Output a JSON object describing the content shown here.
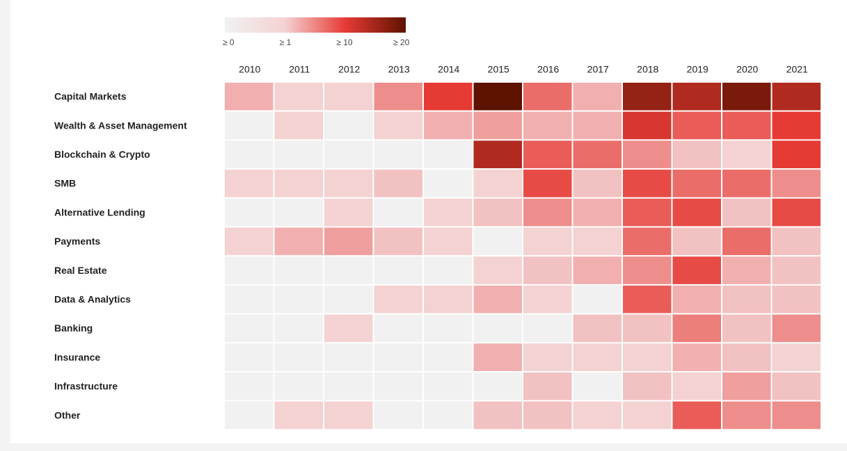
{
  "chart_data": {
    "type": "heatmap",
    "x": [
      "2010",
      "2011",
      "2012",
      "2013",
      "2014",
      "2015",
      "2016",
      "2017",
      "2018",
      "2019",
      "2020",
      "2021"
    ],
    "y": [
      "Capital Markets",
      "Wealth & Asset Management",
      "Blockchain & Crypto",
      "SMB",
      "Alternative Lending",
      "Payments",
      "Real Estate",
      "Data & Analytics",
      "Banking",
      "Insurance",
      "Infrastructure",
      "Other"
    ],
    "values": [
      [
        3,
        1,
        1,
        5,
        10,
        20,
        7,
        3,
        16,
        14,
        18,
        14
      ],
      [
        0,
        1,
        0,
        1,
        3,
        4,
        3,
        3,
        11,
        8,
        8,
        10
      ],
      [
        0,
        0,
        0,
        0,
        0,
        14,
        8,
        7,
        5,
        2,
        1,
        10
      ],
      [
        1,
        1,
        1,
        2,
        0,
        1,
        9,
        2,
        9,
        7,
        7,
        5
      ],
      [
        0,
        0,
        1,
        0,
        1,
        2,
        5,
        3,
        8,
        9,
        2,
        9
      ],
      [
        1,
        3,
        4,
        2,
        1,
        0,
        1,
        1,
        7,
        2,
        7,
        2
      ],
      [
        0,
        0,
        0,
        0,
        0,
        1,
        2,
        3,
        5,
        9,
        3,
        2
      ],
      [
        0,
        0,
        0,
        1,
        1,
        3,
        1,
        0,
        8,
        3,
        2,
        2
      ],
      [
        0,
        0,
        1,
        0,
        0,
        0,
        0,
        2,
        2,
        6,
        2,
        5
      ],
      [
        0,
        0,
        0,
        0,
        0,
        3,
        1,
        1,
        1,
        3,
        2,
        1
      ],
      [
        0,
        0,
        0,
        0,
        0,
        0,
        2,
        0,
        2,
        1,
        4,
        2
      ],
      [
        0,
        1,
        1,
        0,
        0,
        2,
        2,
        1,
        1,
        8,
        5,
        5
      ]
    ],
    "colorscale": {
      "ticks": [
        {
          "value": 0,
          "label": "≥ 0"
        },
        {
          "value": 1,
          "label": "≥ 1"
        },
        {
          "value": 10,
          "label": "≥ 10"
        },
        {
          "value": 20,
          "label": "≥ 20"
        }
      ],
      "colors": [
        "#f1f1f1",
        "#f4d2d2",
        "#e63a35",
        "#5e1200"
      ]
    }
  }
}
